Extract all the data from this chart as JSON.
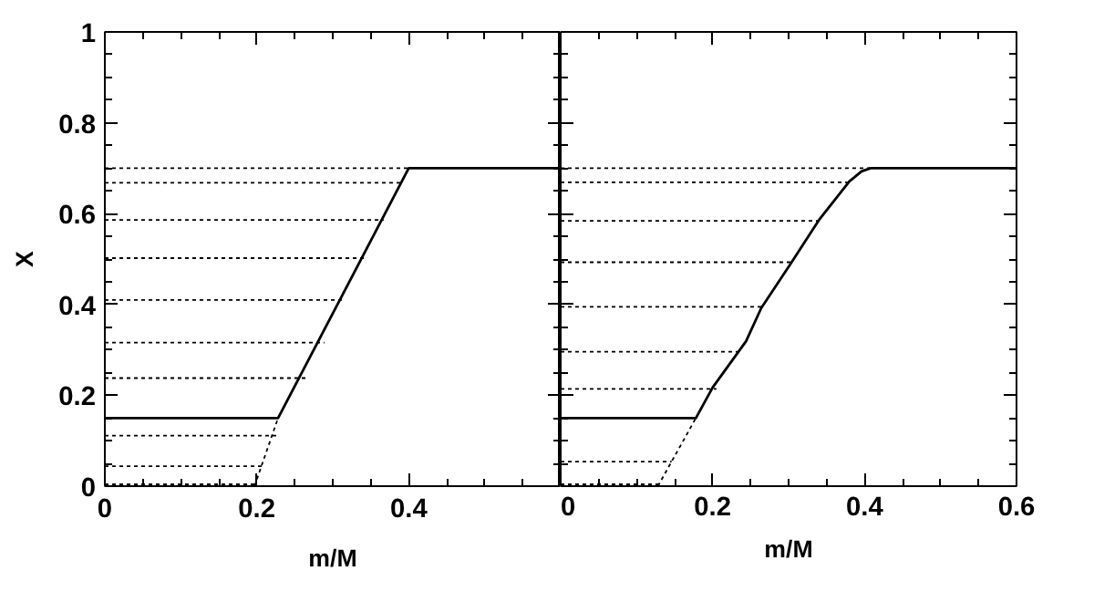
{
  "chart_data": [
    {
      "type": "line",
      "xlabel": "m/M",
      "ylabel": "X",
      "xlim": [
        0,
        0.6
      ],
      "ylim": [
        0,
        1
      ],
      "xticks": [
        0,
        0.2,
        0.4,
        {
          "value": 0.6,
          "label": null
        }
      ],
      "yticks": [
        0,
        0.2,
        0.4,
        0.6,
        0.8,
        1
      ],
      "grid": false,
      "marker": "none",
      "series": [
        {
          "color": "#000000",
          "line_style": "solid",
          "x": [
            0,
            0.228,
            0.4,
            0.6
          ],
          "values": [
            0.15,
            0.15,
            0.7,
            0.7
          ]
        },
        {
          "color": "#000000",
          "line_style": "dotted",
          "x": [
            0.197,
            0.228
          ],
          "values": [
            0,
            0.15
          ]
        },
        {
          "color": "#000000",
          "line_style": "dotted",
          "x": [
            0,
            0.4
          ],
          "values": [
            0.7,
            0.7
          ]
        },
        {
          "color": "#000000",
          "line_style": "dotted",
          "x": [
            0,
            0.391
          ],
          "values": [
            0.668,
            0.668
          ]
        },
        {
          "color": "#000000",
          "line_style": "dotted",
          "x": [
            0,
            0.367
          ],
          "values": [
            0.586,
            0.586
          ]
        },
        {
          "color": "#000000",
          "line_style": "dotted",
          "x": [
            0,
            0.343
          ],
          "values": [
            0.502,
            0.502
          ]
        },
        {
          "color": "#000000",
          "line_style": "dotted",
          "x": [
            0,
            0.316
          ],
          "values": [
            0.41,
            0.41
          ]
        },
        {
          "color": "#000000",
          "line_style": "dotted",
          "x": [
            0,
            0.289
          ],
          "values": [
            0.316,
            0.316
          ]
        },
        {
          "color": "#000000",
          "line_style": "dotted",
          "x": [
            0,
            0.266
          ],
          "values": [
            0.238,
            0.238
          ]
        },
        {
          "color": "#000000",
          "line_style": "dotted",
          "x": [
            0,
            0.229
          ],
          "values": [
            0.111,
            0.111
          ]
        },
        {
          "color": "#000000",
          "line_style": "dotted",
          "x": [
            0,
            0.21
          ],
          "values": [
            0.044,
            0.044
          ]
        },
        {
          "color": "#000000",
          "line_style": "dotted",
          "x": [
            0,
            0.198
          ],
          "values": [
            0.004,
            0.004
          ]
        }
      ]
    },
    {
      "type": "line",
      "xlabel": "m/M",
      "xlim": [
        0,
        0.6
      ],
      "ylim": [
        0,
        1
      ],
      "xticks": [
        0,
        0.2,
        0.4,
        0.6
      ],
      "yticks": [
        0,
        0.2,
        0.4,
        0.6,
        0.8,
        1
      ],
      "tick_labels": "x",
      "grid": false,
      "marker": "none",
      "series": [
        {
          "color": "#000000",
          "line_style": "solid",
          "x": [
            0,
            0.178,
            0.2,
            0.244,
            0.264,
            0.304,
            0.34,
            0.38,
            0.396,
            0.408,
            0.6
          ],
          "values": [
            0.15,
            0.15,
            0.217,
            0.319,
            0.392,
            0.493,
            0.586,
            0.671,
            0.693,
            0.7,
            0.7
          ]
        },
        {
          "color": "#000000",
          "line_style": "dotted",
          "x": [
            0.128,
            0.178
          ],
          "values": [
            0,
            0.15
          ]
        },
        {
          "color": "#000000",
          "line_style": "dotted",
          "x": [
            0,
            0.408
          ],
          "values": [
            0.7,
            0.7
          ]
        },
        {
          "color": "#000000",
          "line_style": "dotted",
          "x": [
            0,
            0.379
          ],
          "values": [
            0.669,
            0.669
          ]
        },
        {
          "color": "#000000",
          "line_style": "dotted",
          "x": [
            0,
            0.339
          ],
          "values": [
            0.584,
            0.584
          ]
        },
        {
          "color": "#000000",
          "line_style": "dotted",
          "x": [
            0,
            0.304
          ],
          "values": [
            0.493,
            0.493
          ]
        },
        {
          "color": "#000000",
          "line_style": "dotted",
          "x": [
            0,
            0.265
          ],
          "values": [
            0.395,
            0.395
          ]
        },
        {
          "color": "#000000",
          "line_style": "dotted",
          "x": [
            0,
            0.235
          ],
          "values": [
            0.296,
            0.296
          ]
        },
        {
          "color": "#000000",
          "line_style": "dotted",
          "x": [
            0,
            0.205
          ],
          "values": [
            0.214,
            0.214
          ]
        },
        {
          "color": "#000000",
          "line_style": "dotted",
          "x": [
            0,
            0.146
          ],
          "values": [
            0.054,
            0.054
          ]
        },
        {
          "color": "#000000",
          "line_style": "dotted",
          "x": [
            0,
            0.129
          ],
          "values": [
            0.004,
            0.004
          ]
        }
      ]
    }
  ]
}
